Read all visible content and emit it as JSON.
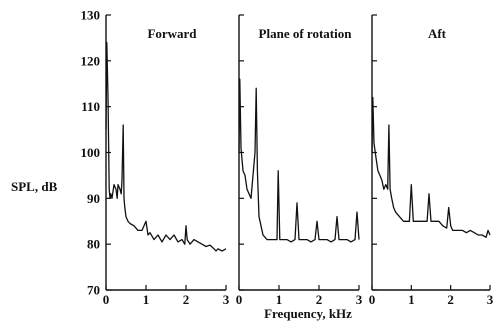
{
  "chart_data": {
    "type": "line",
    "ylabel": "SPL, dB",
    "xlabel": "Frequency, kHz",
    "ylim": [
      70,
      130
    ],
    "xlim": [
      0,
      3
    ],
    "yticks": [
      70,
      80,
      90,
      100,
      110,
      120,
      130
    ],
    "xticks": [
      0,
      1,
      2,
      3
    ],
    "grid": false,
    "panels": [
      {
        "title": "Forward",
        "x": [
          0.0,
          0.02,
          0.05,
          0.08,
          0.1,
          0.12,
          0.15,
          0.2,
          0.25,
          0.28,
          0.3,
          0.35,
          0.38,
          0.4,
          0.43,
          0.45,
          0.47,
          0.5,
          0.55,
          0.6,
          0.7,
          0.8,
          0.9,
          1.0,
          1.05,
          1.1,
          1.2,
          1.3,
          1.4,
          1.5,
          1.6,
          1.7,
          1.8,
          1.9,
          1.97,
          2.0,
          2.03,
          2.1,
          2.2,
          2.3,
          2.4,
          2.5,
          2.6,
          2.7,
          2.75,
          2.8,
          2.9,
          3.0
        ],
        "y": [
          105,
          124,
          112,
          92,
          90,
          91,
          90,
          93,
          92,
          90,
          93,
          92,
          91,
          94,
          106,
          90,
          88,
          86,
          85,
          84.5,
          84,
          83,
          83,
          85,
          82,
          82.5,
          81,
          82,
          80.5,
          82,
          81,
          82,
          80.5,
          81,
          80,
          84,
          81,
          80,
          81,
          80.5,
          80,
          79.5,
          79.8,
          79,
          78.5,
          79,
          78.5,
          79
        ]
      },
      {
        "title": "Plane of rotation",
        "x": [
          0.0,
          0.02,
          0.05,
          0.1,
          0.15,
          0.2,
          0.25,
          0.3,
          0.35,
          0.4,
          0.43,
          0.46,
          0.5,
          0.55,
          0.6,
          0.7,
          0.8,
          0.9,
          0.95,
          0.98,
          1.02,
          1.1,
          1.2,
          1.3,
          1.4,
          1.45,
          1.5,
          1.6,
          1.7,
          1.8,
          1.9,
          1.95,
          2.0,
          2.05,
          2.2,
          2.3,
          2.4,
          2.45,
          2.5,
          2.6,
          2.7,
          2.8,
          2.9,
          2.95,
          3.0
        ],
        "y": [
          100,
          116,
          101,
          96,
          95,
          92,
          91,
          90,
          95,
          100,
          114,
          96,
          86,
          84,
          82,
          81,
          81,
          81,
          81,
          96,
          81,
          81,
          81,
          80.5,
          81,
          89,
          81,
          81,
          81,
          80.5,
          81,
          85,
          81,
          81,
          81,
          80.5,
          81,
          86,
          81,
          81,
          81,
          80.5,
          81,
          87,
          81
        ]
      },
      {
        "title": "Aft",
        "x": [
          0.0,
          0.02,
          0.05,
          0.1,
          0.15,
          0.2,
          0.25,
          0.3,
          0.35,
          0.4,
          0.43,
          0.46,
          0.5,
          0.55,
          0.6,
          0.7,
          0.8,
          0.9,
          0.95,
          1.0,
          1.05,
          1.1,
          1.2,
          1.3,
          1.4,
          1.45,
          1.5,
          1.6,
          1.7,
          1.8,
          1.9,
          1.95,
          2.0,
          2.05,
          2.2,
          2.3,
          2.4,
          2.5,
          2.6,
          2.7,
          2.8,
          2.9,
          2.95,
          3.0
        ],
        "y": [
          100,
          112,
          102,
          99,
          96,
          95,
          94,
          92,
          93,
          92,
          106,
          92,
          90,
          88,
          87,
          86,
          85,
          85,
          85,
          93,
          85,
          85,
          85,
          85,
          85,
          91,
          85,
          85,
          85,
          84,
          83.5,
          88,
          84,
          83,
          83,
          83,
          82.5,
          83,
          82.5,
          82,
          82,
          81.5,
          83,
          82
        ]
      }
    ]
  }
}
